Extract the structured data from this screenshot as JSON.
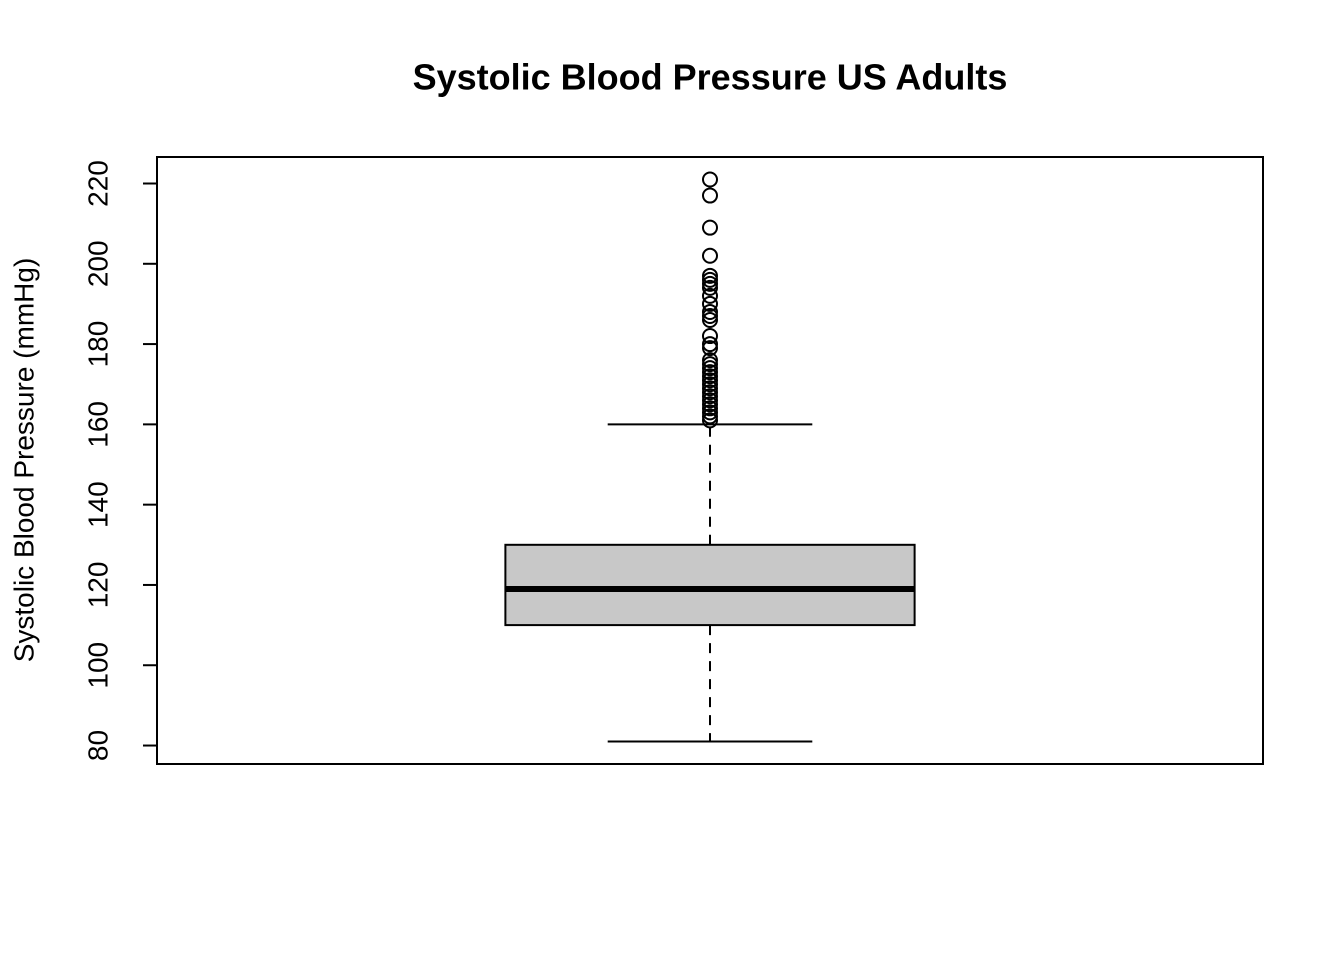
{
  "chart_data": {
    "type": "boxplot",
    "title": "Systolic Blood Pressure US Adults",
    "y_label": "Systolic Blood Pressure (mmHg)",
    "ylim": [
      75.4,
      226.6
    ],
    "yticks": [
      80,
      100,
      120,
      140,
      160,
      180,
      200,
      220
    ],
    "color": "#c8c8c8",
    "boxes": [
      {
        "whisker_low": 81,
        "q1": 110,
        "median": 119,
        "q3": 130,
        "whisker_high": 160,
        "outliers": [
          221,
          217,
          209,
          202,
          197,
          196,
          195,
          194,
          192,
          190,
          188,
          187,
          186,
          182,
          180,
          179,
          176,
          175,
          174,
          173,
          172,
          171,
          170,
          169,
          168,
          167,
          166,
          165,
          164,
          163,
          162,
          161
        ]
      }
    ]
  }
}
